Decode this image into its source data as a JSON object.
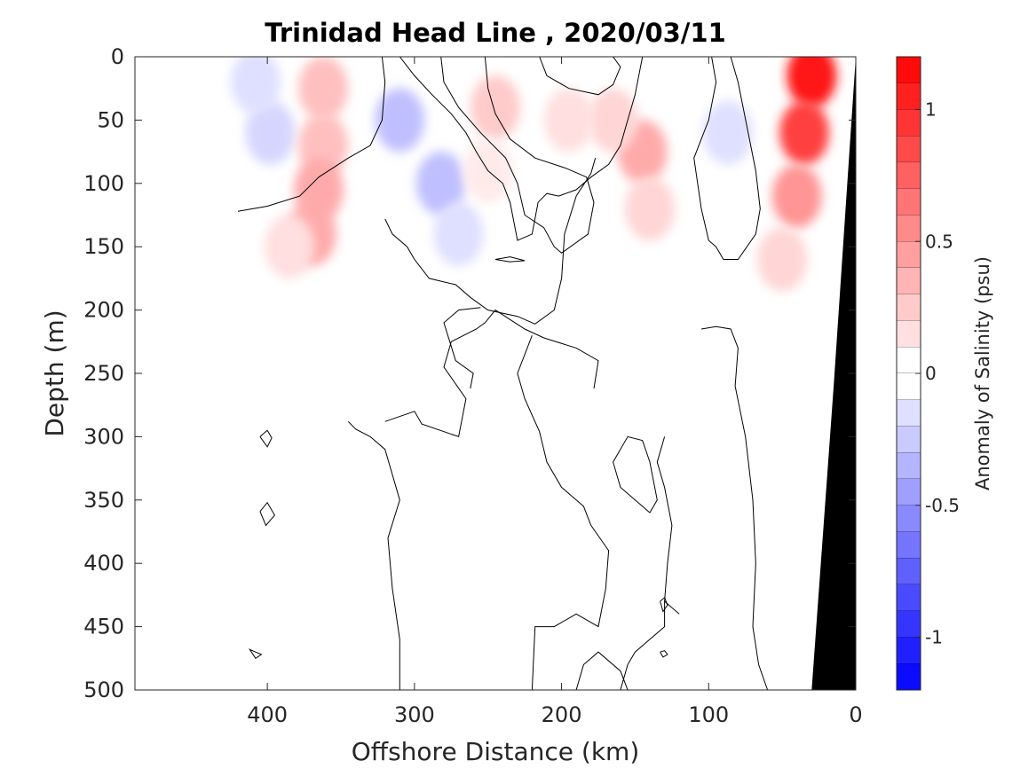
{
  "chart_data": {
    "type": "heatmap",
    "title": "Trinidad Head Line , 2020/03/11",
    "xlabel": "Offshore Distance (km)",
    "ylabel": "Depth (m)",
    "xlim": [
      490,
      0
    ],
    "ylim": [
      0,
      500
    ],
    "x_ticks": [
      400,
      300,
      200,
      100,
      0
    ],
    "x_tick_labels": [
      "400",
      "300",
      "200",
      "100",
      "0"
    ],
    "y_ticks": [
      0,
      50,
      100,
      150,
      200,
      250,
      300,
      350,
      400,
      450,
      500
    ],
    "y_tick_labels": [
      "0",
      "50",
      "100",
      "150",
      "200",
      "250",
      "300",
      "350",
      "400",
      "450",
      "500"
    ],
    "colorbar": {
      "label": "Anomaly of Salinity (psu)",
      "range": [
        -1.2,
        1.2
      ],
      "step": 0.1,
      "ticks": [
        1,
        0.5,
        0,
        -0.5,
        -1
      ],
      "tick_labels": [
        "1",
        "0.5",
        "0",
        "-0.5",
        "-1"
      ],
      "color_positive": "#ff0000",
      "color_negative": "#0000ff"
    },
    "blobs": [
      {
        "x": 398,
        "depth": 60,
        "anomaly": -0.2
      },
      {
        "x": 408,
        "depth": 20,
        "anomaly": -0.15
      },
      {
        "x": 362,
        "depth": 25,
        "anomaly": 0.3
      },
      {
        "x": 362,
        "depth": 70,
        "anomaly": 0.3
      },
      {
        "x": 365,
        "depth": 105,
        "anomaly": 0.4
      },
      {
        "x": 370,
        "depth": 140,
        "anomaly": 0.4
      },
      {
        "x": 385,
        "depth": 150,
        "anomaly": 0.15
      },
      {
        "x": 310,
        "depth": 50,
        "anomaly": -0.3
      },
      {
        "x": 282,
        "depth": 100,
        "anomaly": -0.3
      },
      {
        "x": 270,
        "depth": 140,
        "anomaly": -0.15
      },
      {
        "x": 245,
        "depth": 40,
        "anomaly": 0.25
      },
      {
        "x": 250,
        "depth": 90,
        "anomaly": 0.1
      },
      {
        "x": 145,
        "depth": 75,
        "anomaly": 0.4
      },
      {
        "x": 165,
        "depth": 50,
        "anomaly": 0.2
      },
      {
        "x": 140,
        "depth": 120,
        "anomaly": 0.2
      },
      {
        "x": 195,
        "depth": 50,
        "anomaly": 0.15
      },
      {
        "x": 87,
        "depth": 60,
        "anomaly": -0.15
      },
      {
        "x": 30,
        "depth": 15,
        "anomaly": 1.1
      },
      {
        "x": 35,
        "depth": 60,
        "anomaly": 0.9
      },
      {
        "x": 40,
        "depth": 110,
        "anomaly": 0.5
      },
      {
        "x": 50,
        "depth": 160,
        "anomaly": 0.2
      }
    ],
    "zero_contours": [
      [
        [
          420,
          122
        ],
        [
          400,
          118
        ],
        [
          378,
          110
        ],
        [
          365,
          95
        ],
        [
          345,
          80
        ],
        [
          330,
          70
        ],
        [
          322,
          50
        ],
        [
          320,
          20
        ],
        [
          322,
          0
        ]
      ],
      [
        [
          310,
          0
        ],
        [
          300,
          15
        ],
        [
          288,
          30
        ],
        [
          275,
          45
        ],
        [
          265,
          60
        ],
        [
          258,
          75
        ],
        [
          250,
          90
        ],
        [
          240,
          100
        ],
        [
          235,
          115
        ],
        [
          230,
          145
        ],
        [
          220,
          140
        ],
        [
          216,
          115
        ],
        [
          210,
          108
        ],
        [
          202,
          110
        ],
        [
          190,
          105
        ],
        [
          180,
          95
        ],
        [
          168,
          85
        ],
        [
          160,
          70
        ],
        [
          155,
          50
        ],
        [
          150,
          30
        ],
        [
          145,
          0
        ]
      ],
      [
        [
          282,
          0
        ],
        [
          280,
          20
        ],
        [
          270,
          40
        ],
        [
          255,
          60
        ],
        [
          238,
          80
        ],
        [
          230,
          100
        ],
        [
          225,
          125
        ],
        [
          212,
          135
        ],
        [
          205,
          150
        ],
        [
          200,
          155
        ],
        [
          182,
          140
        ],
        [
          178,
          115
        ],
        [
          183,
          95
        ],
        [
          197,
          88
        ],
        [
          218,
          80
        ],
        [
          235,
          65
        ],
        [
          245,
          45
        ],
        [
          250,
          25
        ],
        [
          252,
          0
        ]
      ],
      [
        [
          320,
          128
        ],
        [
          315,
          140
        ],
        [
          305,
          150
        ],
        [
          300,
          160
        ],
        [
          290,
          175
        ],
        [
          272,
          180
        ],
        [
          262,
          190
        ],
        [
          250,
          200
        ],
        [
          230,
          205
        ],
        [
          218,
          211
        ],
        [
          205,
          200
        ],
        [
          200,
          175
        ],
        [
          198,
          140
        ],
        [
          190,
          110
        ],
        [
          180,
          92
        ],
        [
          177,
          80
        ]
      ],
      [
        [
          215,
          0
        ],
        [
          210,
          15
        ],
        [
          195,
          25
        ],
        [
          175,
          30
        ],
        [
          165,
          22
        ],
        [
          160,
          8
        ],
        [
          165,
          0
        ]
      ],
      [
        [
          245,
          160
        ],
        [
          235,
          162
        ],
        [
          225,
          161
        ],
        [
          235,
          158
        ],
        [
          245,
          160
        ]
      ],
      [
        [
          178,
          262
        ],
        [
          175,
          240
        ],
        [
          190,
          230
        ],
        [
          212,
          222
        ],
        [
          225,
          215
        ],
        [
          245,
          200
        ],
        [
          252,
          210
        ],
        [
          258,
          215
        ],
        [
          275,
          225
        ],
        [
          280,
          245
        ],
        [
          265,
          270
        ],
        [
          270,
          300
        ],
        [
          295,
          290
        ],
        [
          300,
          280
        ],
        [
          320,
          288
        ]
      ],
      [
        [
          262,
          262
        ],
        [
          260,
          250
        ],
        [
          272,
          240
        ],
        [
          280,
          210
        ],
        [
          270,
          200
        ],
        [
          255,
          198
        ]
      ],
      [
        [
          310,
          500
        ],
        [
          310,
          460
        ],
        [
          315,
          420
        ],
        [
          318,
          380
        ],
        [
          310,
          350
        ],
        [
          320,
          310
        ],
        [
          330,
          300
        ],
        [
          340,
          294
        ],
        [
          345,
          288
        ]
      ],
      [
        [
          180,
          370
        ],
        [
          185,
          355
        ],
        [
          200,
          340
        ],
        [
          210,
          320
        ],
        [
          215,
          296
        ],
        [
          225,
          270
        ],
        [
          230,
          250
        ],
        [
          220,
          220
        ]
      ],
      [
        [
          220,
          500
        ],
        [
          218,
          450
        ],
        [
          205,
          450
        ],
        [
          190,
          440
        ],
        [
          175,
          450
        ],
        [
          170,
          420
        ],
        [
          168,
          390
        ],
        [
          180,
          370
        ]
      ],
      [
        [
          130,
          300
        ],
        [
          135,
          320
        ],
        [
          130,
          340
        ],
        [
          125,
          370
        ],
        [
          128,
          400
        ],
        [
          130,
          430
        ],
        [
          120,
          440
        ]
      ],
      [
        [
          95,
          150
        ],
        [
          100,
          145
        ],
        [
          105,
          120
        ],
        [
          110,
          80
        ],
        [
          100,
          50
        ],
        [
          95,
          20
        ],
        [
          98,
          0
        ],
        [
          85,
          0
        ],
        [
          80,
          20
        ],
        [
          68,
          90
        ],
        [
          65,
          120
        ],
        [
          68,
          140
        ],
        [
          80,
          160
        ],
        [
          90,
          160
        ],
        [
          95,
          150
        ]
      ],
      [
        [
          105,
          215
        ],
        [
          95,
          213
        ],
        [
          85,
          215
        ],
        [
          80,
          230
        ],
        [
          82,
          260
        ],
        [
          75,
          300
        ],
        [
          70,
          350
        ],
        [
          68,
          400
        ],
        [
          70,
          450
        ],
        [
          66,
          480
        ],
        [
          60,
          500
        ]
      ],
      [
        [
          155,
          500
        ],
        [
          160,
          485
        ],
        [
          175,
          470
        ],
        [
          185,
          480
        ],
        [
          190,
          500
        ]
      ],
      [
        [
          140,
          360
        ],
        [
          160,
          340
        ],
        [
          165,
          320
        ],
        [
          155,
          300
        ],
        [
          145,
          303
        ],
        [
          140,
          320
        ],
        [
          135,
          350
        ],
        [
          140,
          360
        ]
      ],
      [
        [
          130,
          430
        ],
        [
          130,
          450
        ],
        [
          140,
          460
        ],
        [
          150,
          470
        ],
        [
          155,
          480
        ],
        [
          160,
          500
        ]
      ],
      [
        [
          405,
          300
        ],
        [
          400,
          295
        ],
        [
          397,
          301
        ],
        [
          400,
          308
        ],
        [
          405,
          300
        ]
      ],
      [
        [
          405,
          359
        ],
        [
          400,
          352
        ],
        [
          395,
          362
        ],
        [
          401,
          370
        ],
        [
          405,
          359
        ]
      ],
      [
        [
          408,
          470
        ],
        [
          412,
          468
        ],
        [
          408,
          475
        ],
        [
          404,
          472
        ],
        [
          408,
          470
        ]
      ],
      [
        [
          133,
          430
        ],
        [
          130,
          427
        ],
        [
          128,
          433
        ],
        [
          131,
          438
        ],
        [
          133,
          430
        ]
      ],
      [
        [
          133,
          470
        ],
        [
          130,
          469
        ],
        [
          128,
          472
        ],
        [
          131,
          474
        ],
        [
          133,
          470
        ]
      ]
    ],
    "land_mask": [
      [
        0,
        0
      ],
      [
        0,
        500
      ],
      [
        30,
        500
      ],
      [
        15,
        260
      ],
      [
        0,
        0
      ]
    ]
  }
}
